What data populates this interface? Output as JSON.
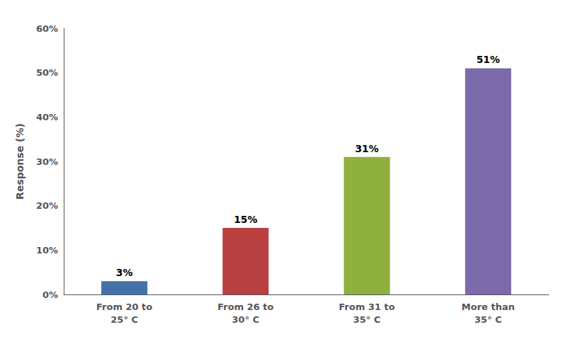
{
  "chart_data": {
    "type": "bar",
    "ylabel": "Response (%)",
    "categories": [
      "From 20 to\n25° C",
      "From 26 to\n30° C",
      "From 31 to\n35° C",
      "More than\n35° C"
    ],
    "values": [
      3,
      15,
      31,
      51
    ],
    "value_labels": [
      "3%",
      "15%",
      "31%",
      "51%"
    ],
    "data_labels": true,
    "colors": [
      "#4472a8",
      "#b94040",
      "#8faf3e",
      "#7b6aaa"
    ],
    "ylim": [
      0,
      60
    ],
    "yticks": [
      {
        "value": 0,
        "label": "0%"
      },
      {
        "value": 10,
        "label": "10%"
      },
      {
        "value": 20,
        "label": "20%"
      },
      {
        "value": 30,
        "label": "30%"
      },
      {
        "value": 40,
        "label": "40%"
      },
      {
        "value": 50,
        "label": "50%"
      },
      {
        "value": 60,
        "label": "60%"
      }
    ],
    "grid": false
  }
}
